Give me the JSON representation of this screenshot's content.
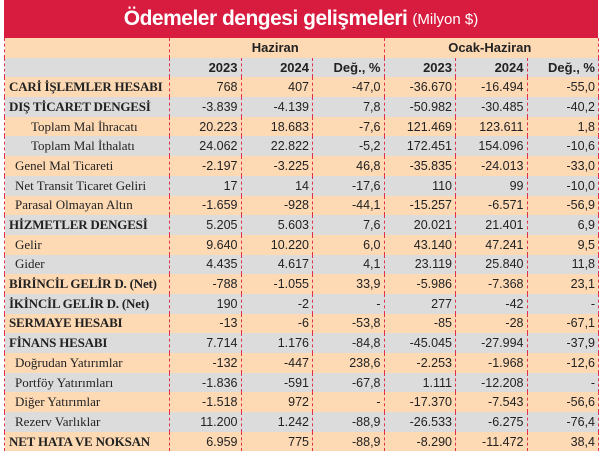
{
  "title": {
    "main": "Ödemeler dengesi gelişmeleri",
    "unit": "(Milyon $)"
  },
  "groups": [
    "Haziran",
    "Ocak-Haziran"
  ],
  "columns": [
    "2023",
    "2024",
    "Değ., %",
    "2023",
    "2024",
    "Değ., %"
  ],
  "colors": {
    "title_bg": "#d71c3f",
    "row_peach": "#fdd9b4",
    "row_grey": "#dcdcdc",
    "border": "#e0304a"
  },
  "rows": [
    {
      "label": "CARİ İŞLEMLER HESABI",
      "level": 0,
      "values": [
        "768",
        "407",
        "-47,0",
        "-36.670",
        "-16.494",
        "-55,0"
      ]
    },
    {
      "label": "DIŞ TİCARET DENGESİ",
      "level": 0,
      "values": [
        "-3.839",
        "-4.139",
        "7,8",
        "-50.982",
        "-30.485",
        "-40,2"
      ]
    },
    {
      "label": "Toplam Mal İhracatı",
      "level": 2,
      "values": [
        "20.223",
        "18.683",
        "-7,6",
        "121.469",
        "123.611",
        "1,8"
      ]
    },
    {
      "label": "Toplam Mal İthalatı",
      "level": 2,
      "values": [
        "24.062",
        "22.822",
        "-5,2",
        "172.451",
        "154.096",
        "-10,6"
      ]
    },
    {
      "label": "Genel Mal Ticareti",
      "level": 1,
      "values": [
        "-2.197",
        "-3.225",
        "46,8",
        "-35.835",
        "-24.013",
        "-33,0"
      ]
    },
    {
      "label": "Net Transit Ticaret Geliri",
      "level": 1,
      "values": [
        "17",
        "14",
        "-17,6",
        "110",
        "99",
        "-10,0"
      ]
    },
    {
      "label": "Parasal Olmayan Altın",
      "level": 1,
      "values": [
        "-1.659",
        "-928",
        "-44,1",
        "-15.257",
        "-6.571",
        "-56,9"
      ]
    },
    {
      "label": "HİZMETLER DENGESİ",
      "level": 0,
      "values": [
        "5.205",
        "5.603",
        "7,6",
        "20.021",
        "21.401",
        "6,9"
      ]
    },
    {
      "label": "Gelir",
      "level": 1,
      "values": [
        "9.640",
        "10.220",
        "6,0",
        "43.140",
        "47.241",
        "9,5"
      ]
    },
    {
      "label": "Gider",
      "level": 1,
      "values": [
        "4.435",
        "4.617",
        "4,1",
        "23.119",
        "25.840",
        "11,8"
      ]
    },
    {
      "label": "BİRİNCİL GELİR D. (Net)",
      "level": 0,
      "values": [
        "-788",
        "-1.055",
        "33,9",
        "-5.986",
        "-7.368",
        "23,1"
      ]
    },
    {
      "label": "İKİNCİL GELİR D. (Net)",
      "level": 0,
      "values": [
        "190",
        "-2",
        "-",
        "277",
        "-42",
        "-"
      ]
    },
    {
      "label": "SERMAYE HESABI",
      "level": 0,
      "values": [
        "-13",
        "-6",
        "-53,8",
        "-85",
        "-28",
        "-67,1"
      ]
    },
    {
      "label": "FİNANS HESABI",
      "level": 0,
      "values": [
        "7.714",
        "1.176",
        "-84,8",
        "-45.045",
        "-27.994",
        "-37,9"
      ]
    },
    {
      "label": "Doğrudan Yatırımlar",
      "level": 1,
      "values": [
        "-132",
        "-447",
        "238,6",
        "-2.253",
        "-1.968",
        "-12,6"
      ]
    },
    {
      "label": "Portföy Yatırımları",
      "level": 1,
      "values": [
        "-1.836",
        "-591",
        "-67,8",
        "1.111",
        "-12.208",
        "-"
      ]
    },
    {
      "label": "Diğer Yatırımlar",
      "level": 1,
      "values": [
        "-1.518",
        "972",
        "-",
        "-17.370",
        "-7.543",
        "-56,6"
      ]
    },
    {
      "label": "Rezerv Varlıklar",
      "level": 1,
      "values": [
        "11.200",
        "1.242",
        "-88,9",
        "-26.533",
        "-6.275",
        "-76,4"
      ]
    },
    {
      "label": "NET HATA VE NOKSAN",
      "level": 0,
      "values": [
        "6.959",
        "775",
        "-88,9",
        "-8.290",
        "-11.472",
        "38,4"
      ]
    }
  ]
}
